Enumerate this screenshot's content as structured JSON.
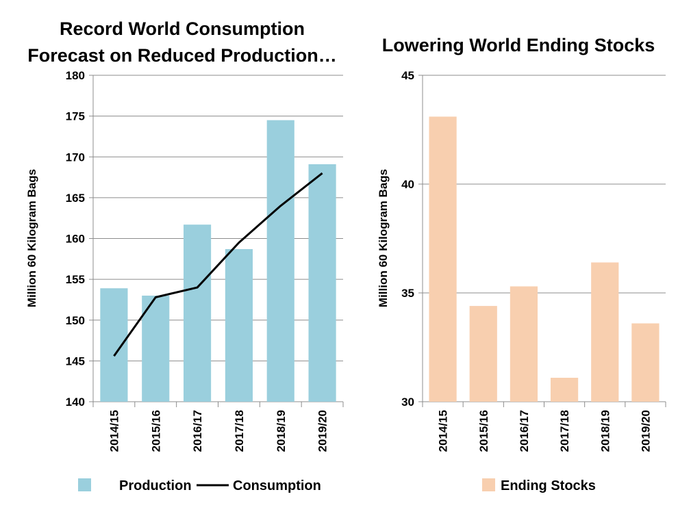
{
  "chart_data": [
    {
      "type": "bar",
      "title_lines": [
        "Record World Consumption",
        "Forecast on Reduced Production…"
      ],
      "ylabel": "Million 60 Kilogram Bags",
      "categories": [
        "2014/15",
        "2015/16",
        "2016/17",
        "2017/18",
        "2018/19",
        "2019/20"
      ],
      "ylim": [
        140,
        180
      ],
      "yticks": [
        140,
        145,
        150,
        155,
        160,
        165,
        170,
        175,
        180
      ],
      "grid": true,
      "legend_position": "bottom",
      "series": [
        {
          "name": "Production",
          "kind": "bar",
          "color": "#9ACFDD",
          "values": [
            153.9,
            153.0,
            161.7,
            158.7,
            174.5,
            169.1
          ]
        },
        {
          "name": "Consumption",
          "kind": "line",
          "color": "#000000",
          "values": [
            145.6,
            152.8,
            154.0,
            159.5,
            164.0,
            168.0
          ]
        }
      ]
    },
    {
      "type": "bar",
      "title_lines": [
        "Lowering World Ending Stocks"
      ],
      "ylabel": "Million 60 Kilogram Bags",
      "categories": [
        "2014/15",
        "2015/16",
        "2016/17",
        "2017/18",
        "2018/19",
        "2019/20"
      ],
      "ylim": [
        30,
        45
      ],
      "yticks": [
        30,
        35,
        40,
        45
      ],
      "grid": true,
      "legend_position": "bottom",
      "series": [
        {
          "name": "Ending Stocks",
          "kind": "bar",
          "color": "#F8CFAF",
          "values": [
            43.1,
            34.4,
            35.3,
            31.1,
            36.4,
            33.6
          ]
        }
      ]
    }
  ]
}
